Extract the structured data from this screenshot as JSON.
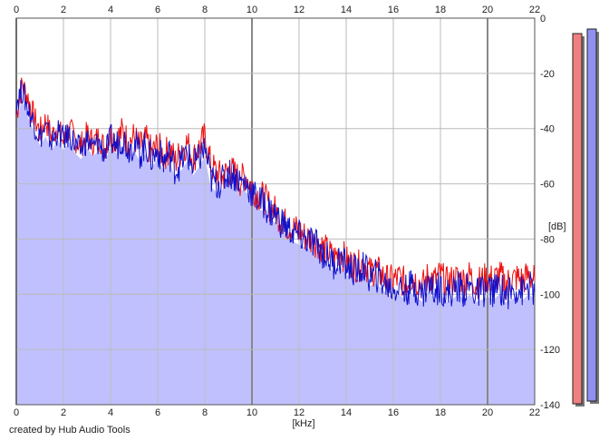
{
  "credit": "created by Hub Audio Tools",
  "colors": {
    "left_channel": "#ee1111",
    "right_channel": "#1111cc",
    "fill": "#c0c0ff",
    "left_meter": "#f08080",
    "right_meter": "#9090f0"
  },
  "chart_data": {
    "type": "line",
    "xlabel": "[kHz]",
    "ylabel": "[dB]",
    "xlim": [
      0,
      22
    ],
    "ylim": [
      -140,
      0
    ],
    "x_ticks": [
      "0",
      "2",
      "4",
      "6",
      "8",
      "10",
      "12",
      "14",
      "16",
      "18",
      "20",
      "22"
    ],
    "y_ticks": [
      "0",
      "-20",
      "-40",
      "-60",
      "-80",
      "-100",
      "-120",
      "-140"
    ],
    "grid": true,
    "x": [
      0,
      0.25,
      0.5,
      0.75,
      1,
      1.25,
      1.5,
      1.75,
      2,
      2.25,
      2.5,
      2.75,
      3,
      3.25,
      3.5,
      3.75,
      4,
      4.25,
      4.5,
      4.75,
      5,
      5.25,
      5.5,
      5.75,
      6,
      6.25,
      6.5,
      6.75,
      7,
      7.25,
      7.5,
      7.75,
      8,
      8.25,
      8.5,
      8.75,
      9,
      9.25,
      9.5,
      9.75,
      10,
      10.25,
      10.5,
      10.75,
      11,
      11.25,
      11.5,
      11.75,
      12,
      12.25,
      12.5,
      12.75,
      13,
      13.25,
      13.5,
      13.75,
      14,
      14.25,
      14.5,
      14.75,
      15,
      15.25,
      15.5,
      15.75,
      16,
      16.25,
      16.5,
      16.75,
      17,
      17.25,
      17.5,
      17.75,
      18,
      18.25,
      18.5,
      18.75,
      19,
      19.25,
      19.5,
      19.75,
      20,
      20.25,
      20.5,
      20.75,
      21,
      21.25,
      21.5,
      21.75,
      22
    ],
    "series": [
      {
        "values": [
          -35,
          -24,
          -29,
          -36,
          -41,
          -37,
          -43,
          -39,
          -45,
          -40,
          -44,
          -46,
          -42,
          -45,
          -43,
          -47,
          -42,
          -44,
          -41,
          -45,
          -43,
          -47,
          -44,
          -49,
          -46,
          -50,
          -47,
          -52,
          -48,
          -45,
          -51,
          -47,
          -43,
          -53,
          -56,
          -58,
          -55,
          -56,
          -59,
          -57,
          -61,
          -64,
          -65,
          -68,
          -70,
          -73,
          -75,
          -76,
          -77,
          -79,
          -80,
          -81,
          -83,
          -85,
          -87,
          -84,
          -88,
          -89,
          -90,
          -88,
          -92,
          -91,
          -93,
          -95,
          -95,
          -94,
          -96,
          -94,
          -95,
          -97,
          -93,
          -95,
          -93,
          -96,
          -95,
          -94,
          -95,
          -93,
          -96,
          -95,
          -94,
          -95,
          -93,
          -96,
          -95,
          -94,
          -95,
          -93,
          -95
        ]
      },
      {
        "values": [
          -30,
          -26,
          -33,
          -38,
          -43,
          -40,
          -45,
          -41,
          -44,
          -42,
          -46,
          -48,
          -44,
          -47,
          -45,
          -49,
          -44,
          -46,
          -43,
          -47,
          -45,
          -49,
          -46,
          -51,
          -48,
          -52,
          -49,
          -55,
          -52,
          -49,
          -54,
          -51,
          -47,
          -58,
          -60,
          -59,
          -56,
          -57,
          -59,
          -60,
          -63,
          -66,
          -67,
          -70,
          -71,
          -74,
          -76,
          -78,
          -79,
          -80,
          -81,
          -82,
          -85,
          -87,
          -89,
          -87,
          -90,
          -91,
          -92,
          -90,
          -94,
          -93,
          -95,
          -97,
          -98,
          -97,
          -99,
          -97,
          -98,
          -100,
          -96,
          -99,
          -97,
          -100,
          -99,
          -97,
          -99,
          -97,
          -100,
          -99,
          -98,
          -99,
          -97,
          -100,
          -99,
          -98,
          -99,
          -97,
          -99
        ]
      }
    ]
  }
}
